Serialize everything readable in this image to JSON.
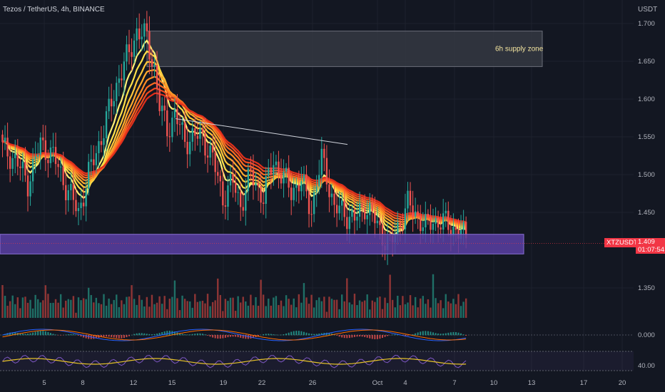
{
  "header": {
    "symbol_title": "Tezos / TetherUS, 4h, BINANCE",
    "currency": "USDT"
  },
  "price_axis": {
    "ticks": [
      "1.700",
      "1.650",
      "1.600",
      "1.550",
      "1.500",
      "1.450",
      "1.350"
    ]
  },
  "time_axis": {
    "ticks": [
      "5",
      "8",
      "12",
      "15",
      "19",
      "22",
      "26",
      "Oct",
      "4",
      "7",
      "10",
      "13",
      "17",
      "20"
    ]
  },
  "supply_zone": {
    "label": "6h supply zone",
    "price_top": 1.69,
    "price_bottom": 1.643
  },
  "demand_zone": {
    "price_top": 1.421,
    "price_bottom": 1.395
  },
  "trendline": {
    "from_price": 1.574,
    "to_price": 1.54
  },
  "current_price": {
    "symbol": "XTZUSDT",
    "price": "1.409",
    "countdown": "01:07:54"
  },
  "macd_panel": {
    "tick": "0.000"
  },
  "rsi_panel": {
    "tick": "40.00"
  },
  "colors": {
    "background": "#131722",
    "up": "#26a69a",
    "down": "#ef5350",
    "supply": "#3a3d47",
    "demand": "#5b3fa3",
    "accent": "#f23645"
  },
  "chart_data": {
    "type": "candlestick",
    "title": "Tezos / TetherUS, 4h, BINANCE",
    "ylim": [
      1.33,
      1.73
    ],
    "y_ticks": [
      1.7,
      1.65,
      1.6,
      1.55,
      1.5,
      1.45,
      1.35
    ],
    "x_ticks": [
      "5",
      "8",
      "12",
      "15",
      "19",
      "22",
      "26",
      "Oct",
      "4",
      "7",
      "10",
      "13",
      "17",
      "20"
    ],
    "close_anchors": [
      [
        0,
        1.535
      ],
      [
        5,
        1.52
      ],
      [
        10,
        1.49
      ],
      [
        15,
        1.54
      ],
      [
        20,
        1.525
      ],
      [
        25,
        1.485
      ],
      [
        30,
        1.45
      ],
      [
        34,
        1.5
      ],
      [
        40,
        1.56
      ],
      [
        46,
        1.63
      ],
      [
        50,
        1.66
      ],
      [
        53,
        1.69
      ],
      [
        57,
        1.68
      ],
      [
        60,
        1.64
      ],
      [
        62,
        1.59
      ],
      [
        65,
        1.56
      ],
      [
        68,
        1.58
      ],
      [
        72,
        1.545
      ],
      [
        75,
        1.55
      ],
      [
        79,
        1.55
      ],
      [
        83,
        1.52
      ],
      [
        87,
        1.47
      ],
      [
        91,
        1.49
      ],
      [
        94,
        1.46
      ],
      [
        98,
        1.5
      ],
      [
        103,
        1.47
      ],
      [
        107,
        1.52
      ],
      [
        110,
        1.5
      ],
      [
        114,
        1.48
      ],
      [
        118,
        1.49
      ],
      [
        122,
        1.455
      ],
      [
        126,
        1.52
      ],
      [
        128,
        1.5
      ],
      [
        131,
        1.455
      ],
      [
        135,
        1.45
      ],
      [
        139,
        1.44
      ],
      [
        143,
        1.46
      ],
      [
        147,
        1.44
      ],
      [
        150,
        1.42
      ],
      [
        153,
        1.405
      ],
      [
        156,
        1.43
      ],
      [
        160,
        1.46
      ],
      [
        164,
        1.445
      ],
      [
        167,
        1.43
      ],
      [
        170,
        1.44
      ],
      [
        175,
        1.435
      ],
      [
        180,
        1.425
      ],
      [
        183,
        1.415
      ]
    ]
  }
}
